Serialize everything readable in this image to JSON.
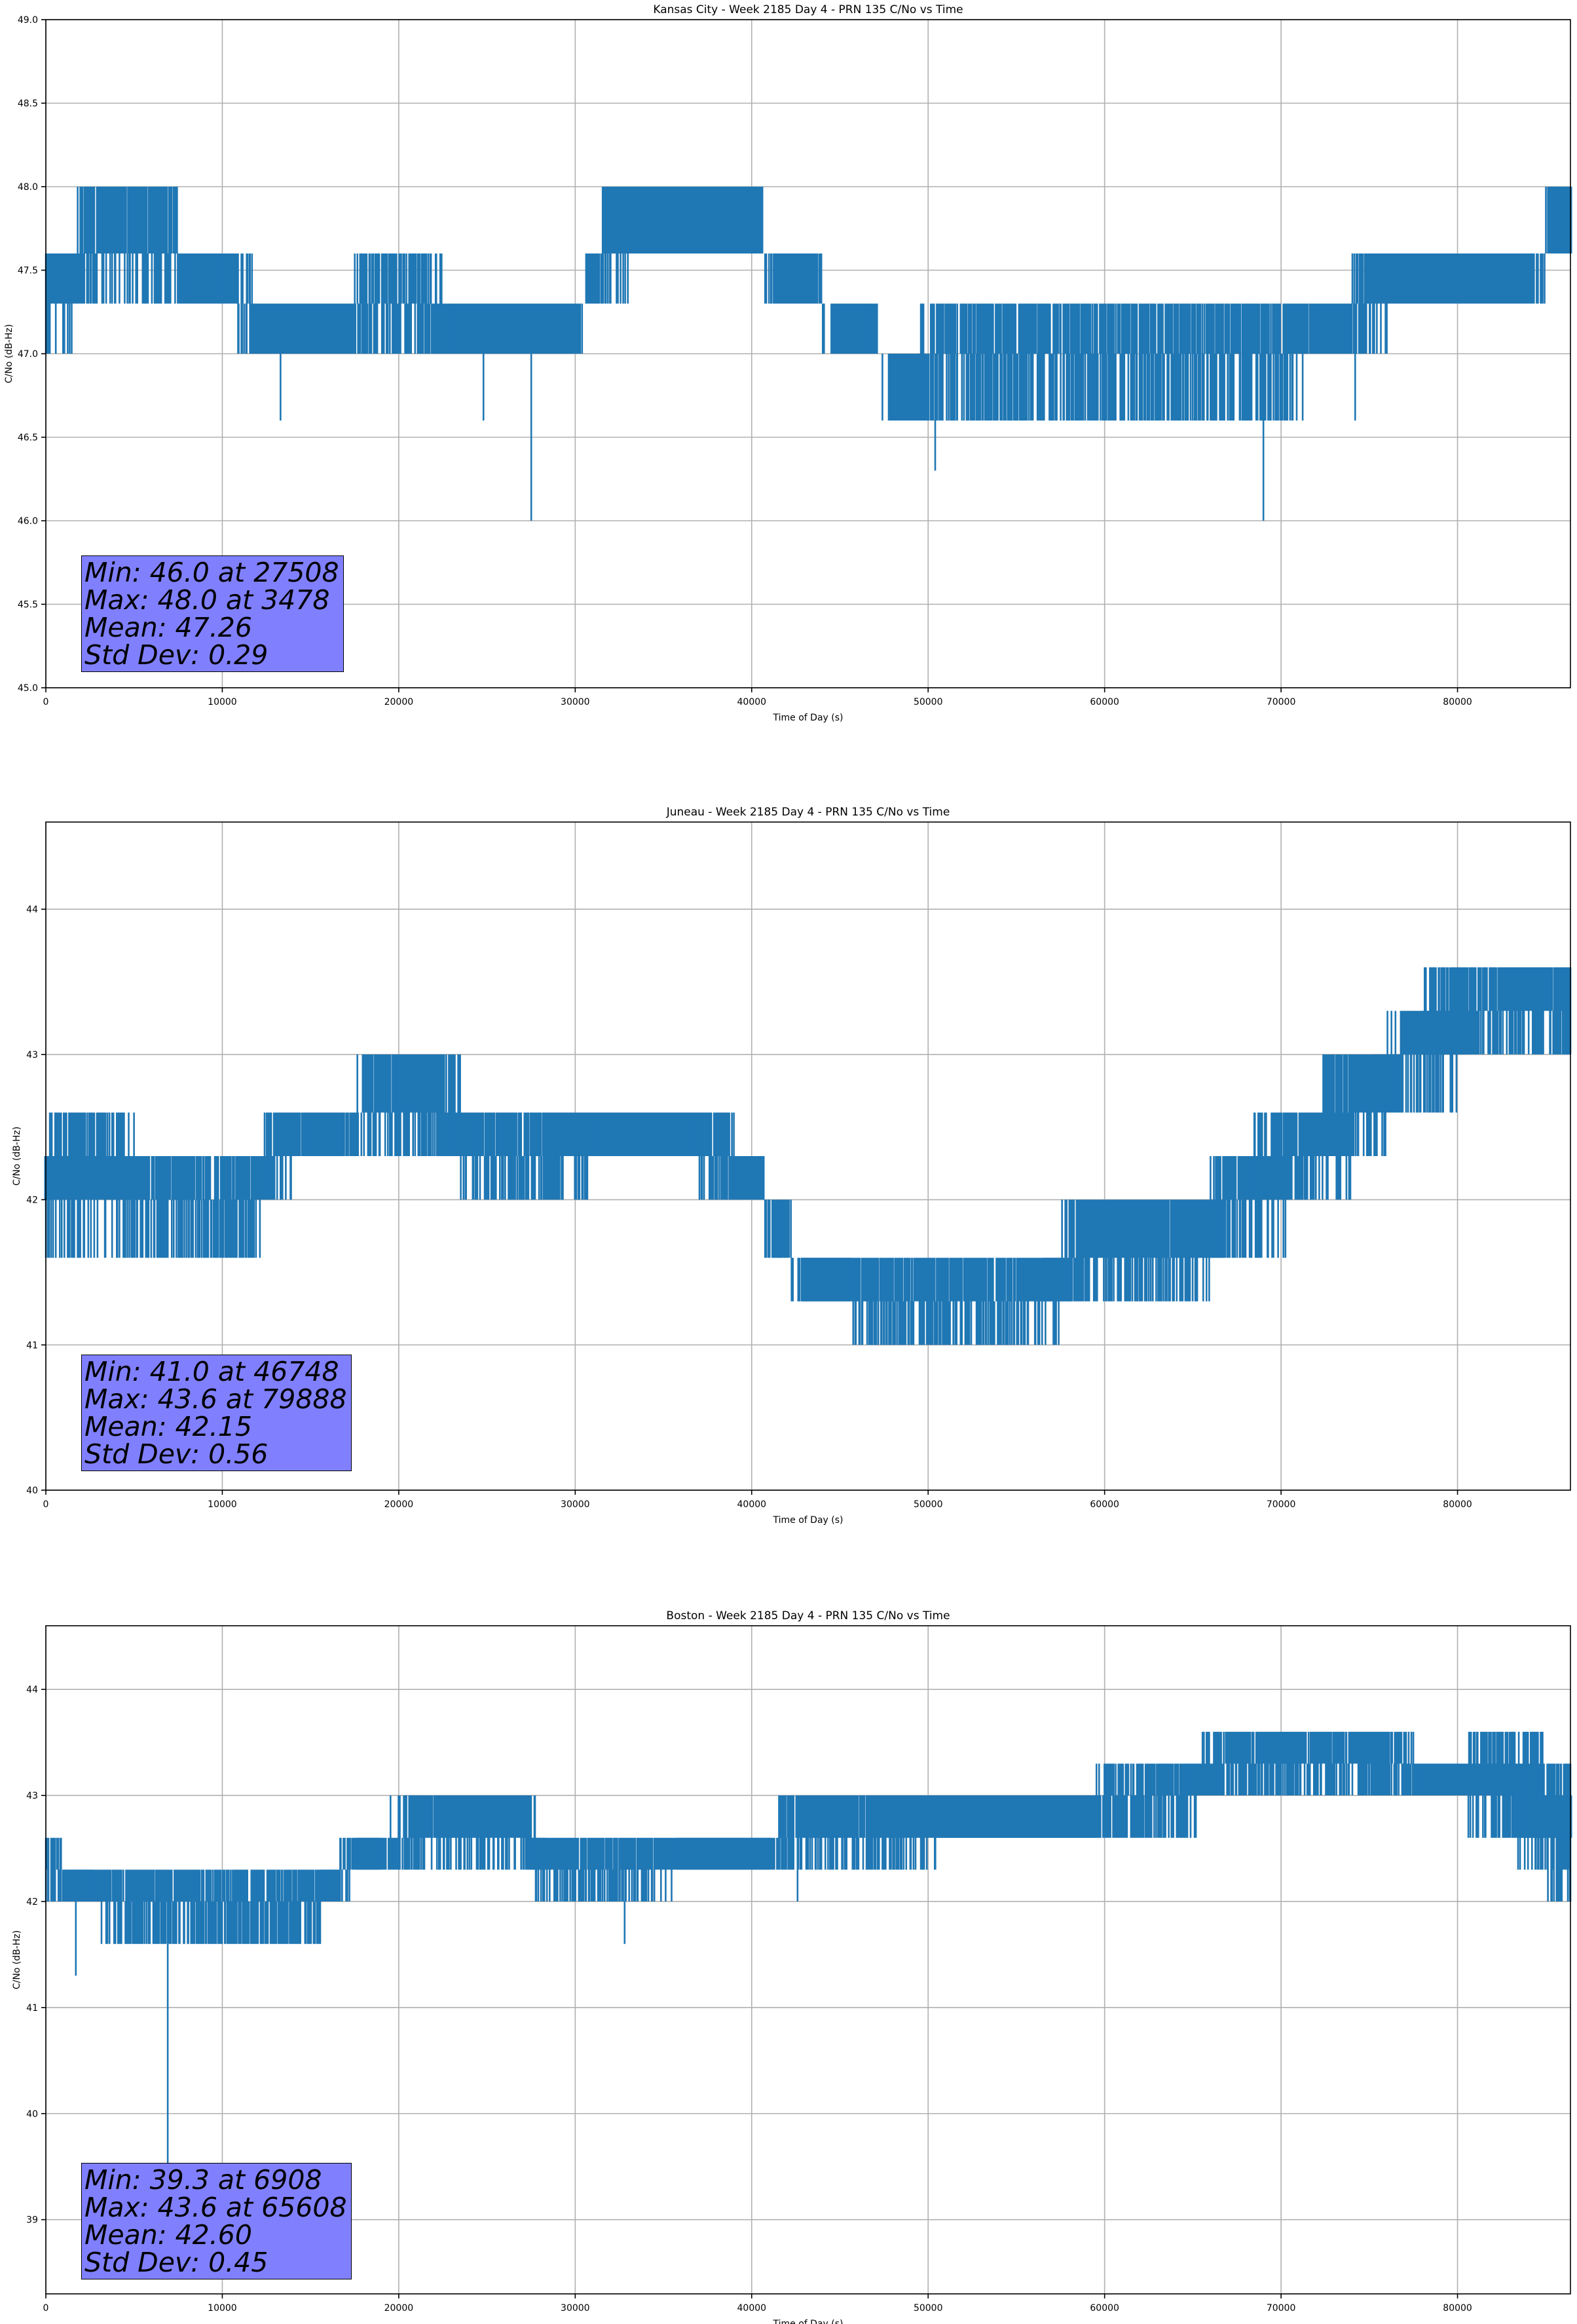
{
  "chart_data": [
    {
      "type": "line",
      "title": "Kansas City - Week 2185 Day 4 - PRN 135 C/No vs Time",
      "xlabel": "Time of Day (s)",
      "ylabel": "C/No (dB-Hz)",
      "xlim": [
        0,
        86400
      ],
      "ylim": [
        45.0,
        49.0
      ],
      "xticks": [
        0,
        10000,
        20000,
        30000,
        40000,
        50000,
        60000,
        70000,
        80000
      ],
      "yticks": [
        "45.0",
        "45.5",
        "46.0",
        "46.5",
        "47.0",
        "47.5",
        "48.0",
        "48.5",
        "49.0"
      ],
      "grid": true,
      "line_color": "#1f77b4",
      "stats": {
        "min": "Min: 46.0 at 27508",
        "max": "Max: 48.0 at 3478",
        "mean": "Mean: 47.26",
        "std": "Std Dev: 0.29"
      },
      "series": [
        {
          "x": [
            0,
            3000,
            6000,
            9000,
            11000,
            12500,
            15000,
            20000,
            25000,
            30000,
            31000,
            32000,
            34000,
            37000,
            40000,
            41500,
            43000,
            45000,
            46500,
            48000,
            51000,
            53000,
            56000,
            60000,
            65000,
            70000,
            73000,
            75000,
            77000,
            80000,
            84000,
            86000
          ],
          "low": [
            47.0,
            47.3,
            47.3,
            47.3,
            47.0,
            47.0,
            47.0,
            47.0,
            47.0,
            47.0,
            47.3,
            47.3,
            47.6,
            47.6,
            47.6,
            47.3,
            47.3,
            47.0,
            47.0,
            46.6,
            46.6,
            46.6,
            46.6,
            46.6,
            46.6,
            46.6,
            47.0,
            47.0,
            47.3,
            47.3,
            47.3,
            47.6
          ],
          "high": [
            47.6,
            48.0,
            48.0,
            47.6,
            47.6,
            47.3,
            47.3,
            47.6,
            47.3,
            47.3,
            47.6,
            48.0,
            48.0,
            48.0,
            48.0,
            47.6,
            47.6,
            47.3,
            47.3,
            47.0,
            47.3,
            47.3,
            47.3,
            47.3,
            47.3,
            47.3,
            47.3,
            47.6,
            47.6,
            47.6,
            47.6,
            48.0
          ],
          "spikes": [
            [
              13300,
              46.6
            ],
            [
              24800,
              46.6
            ],
            [
              27508,
              46.0
            ],
            [
              50400,
              46.3
            ],
            [
              69000,
              46.0
            ],
            [
              74200,
              46.6
            ]
          ]
        }
      ]
    },
    {
      "type": "line",
      "title": "Juneau - Week 2185 Day 4 - PRN 135 C/No vs Time",
      "xlabel": "Time of Day (s)",
      "ylabel": "C/No (dB-Hz)",
      "xlim": [
        0,
        86400
      ],
      "ylim": [
        40.0,
        44.6
      ],
      "xticks": [
        0,
        10000,
        20000,
        30000,
        40000,
        50000,
        60000,
        70000,
        80000
      ],
      "yticks": [
        "40",
        "41",
        "42",
        "43",
        "44"
      ],
      "grid": true,
      "line_color": "#1f77b4",
      "stats": {
        "min": "Min: 41.0 at 46748",
        "max": "Max: 43.6 at 79888",
        "mean": "Mean: 42.15",
        "std": "Std Dev: 0.56"
      },
      "series": [
        {
          "x": [
            0,
            2000,
            4000,
            6000,
            8000,
            10000,
            11500,
            13000,
            16000,
            19000,
            22000,
            25000,
            29000,
            33000,
            36000,
            38000,
            40000,
            41500,
            43000,
            44500,
            47000,
            50000,
            53000,
            56000,
            59000,
            62000,
            65000,
            67000,
            69500,
            71000,
            73000,
            75000,
            77000,
            79000,
            81000,
            83000,
            86000
          ],
          "low": [
            41.6,
            41.6,
            41.6,
            41.6,
            41.6,
            41.6,
            41.6,
            42.0,
            42.3,
            42.3,
            42.3,
            42.0,
            42.0,
            42.3,
            42.3,
            42.0,
            42.0,
            41.6,
            41.3,
            41.3,
            41.0,
            41.0,
            41.0,
            41.0,
            41.3,
            41.3,
            41.3,
            41.6,
            41.6,
            42.0,
            42.0,
            42.3,
            42.6,
            42.6,
            43.0,
            43.0,
            43.0
          ],
          "high": [
            42.6,
            42.6,
            42.6,
            42.3,
            42.3,
            42.3,
            42.3,
            42.6,
            42.6,
            43.0,
            43.0,
            42.6,
            42.6,
            42.6,
            42.6,
            42.6,
            42.3,
            42.0,
            41.6,
            41.6,
            41.6,
            41.6,
            41.6,
            41.6,
            42.0,
            42.0,
            42.0,
            42.3,
            42.6,
            42.6,
            43.0,
            43.0,
            43.3,
            43.6,
            43.6,
            43.6,
            43.6
          ]
        }
      ]
    },
    {
      "type": "line",
      "title": "Boston - Week 2185 Day 4 - PRN 135 C/No vs Time",
      "xlabel": "Time of Day (s)",
      "ylabel": "C/No (dB-Hz)",
      "xlim": [
        0,
        86400
      ],
      "ylim": [
        38.3,
        44.6
      ],
      "xticks": [
        0,
        10000,
        20000,
        30000,
        40000,
        50000,
        60000,
        70000,
        80000
      ],
      "yticks": [
        "39",
        "40",
        "41",
        "42",
        "43",
        "44"
      ],
      "grid": true,
      "line_color": "#1f77b4",
      "stats": {
        "min": "Min: 39.3 at 6908",
        "max": "Max: 43.6 at 65608",
        "mean": "Mean: 42.60",
        "std": "Std Dev: 0.45"
      },
      "series": [
        {
          "x": [
            0,
            2000,
            4000,
            6000,
            7000,
            9000,
            12000,
            15000,
            18000,
            21000,
            24000,
            27000,
            28500,
            31000,
            34000,
            37000,
            40000,
            43000,
            46000,
            49000,
            52000,
            55000,
            58000,
            61000,
            64000,
            67000,
            70000,
            73000,
            76000,
            79000,
            82000,
            84000,
            86000
          ],
          "low": [
            42.0,
            42.0,
            41.6,
            41.6,
            41.6,
            41.6,
            41.6,
            41.6,
            42.3,
            42.3,
            42.3,
            42.3,
            42.0,
            42.0,
            42.0,
            42.3,
            42.3,
            42.3,
            42.3,
            42.3,
            42.6,
            42.6,
            42.6,
            42.6,
            42.6,
            43.0,
            43.0,
            43.0,
            43.0,
            43.0,
            42.6,
            42.3,
            42.0
          ],
          "high": [
            42.6,
            42.3,
            42.3,
            42.3,
            42.3,
            42.3,
            42.3,
            42.3,
            42.6,
            43.0,
            43.0,
            43.0,
            42.6,
            42.6,
            42.6,
            42.6,
            42.6,
            43.0,
            43.0,
            43.0,
            43.0,
            43.0,
            43.0,
            43.3,
            43.3,
            43.6,
            43.6,
            43.6,
            43.6,
            43.3,
            43.6,
            43.6,
            43.3
          ],
          "spikes": [
            [
              1700,
              41.3
            ],
            [
              6908,
              39.3
            ],
            [
              32800,
              41.6
            ],
            [
              42600,
              42.0
            ]
          ]
        }
      ]
    }
  ]
}
